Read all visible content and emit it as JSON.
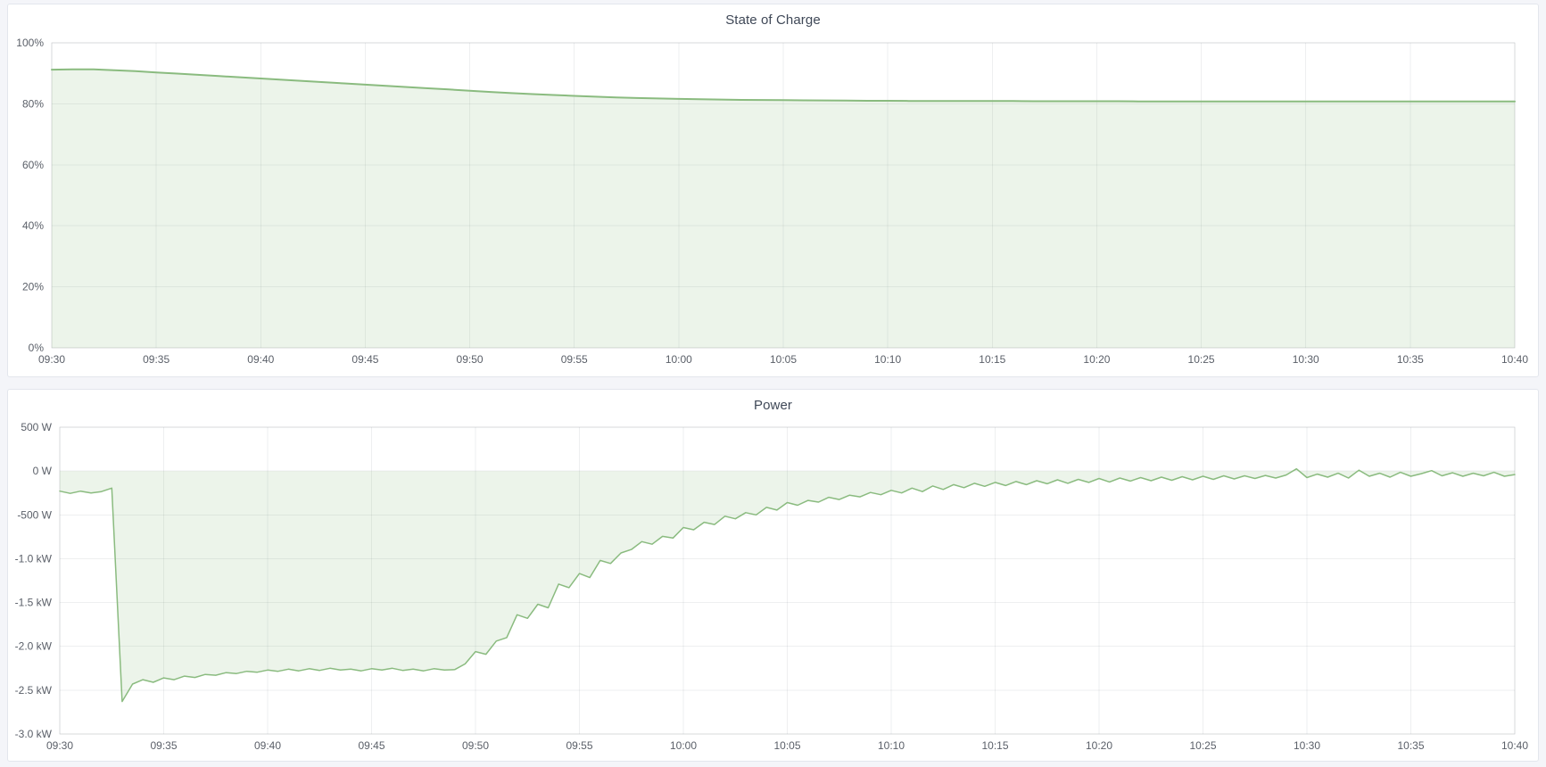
{
  "page": {
    "background": "#f4f5f9",
    "panel_background": "#ffffff"
  },
  "theme": {
    "line_green": "#8abb7f",
    "fill_green": "rgba(138,187,127,0.16)",
    "grid_color": "rgba(20,30,40,0.07)",
    "frame_color": "rgba(20,30,40,0.10)",
    "title_color": "#3f4857",
    "tick_color": "#5a5f68"
  },
  "panels": [
    {
      "title": "State of Charge"
    },
    {
      "title": "Power"
    }
  ],
  "chart_data": [
    {
      "type": "area",
      "title": "State of Charge",
      "xlabel": "",
      "ylabel": "",
      "legend": "none",
      "grid": true,
      "x_range_min": [
        0,
        70
      ],
      "x_ticks": {
        "minutes": [
          0,
          5,
          10,
          15,
          20,
          25,
          30,
          35,
          40,
          45,
          50,
          55,
          60,
          65,
          70
        ],
        "labels": [
          "09:30",
          "09:35",
          "09:40",
          "09:45",
          "09:50",
          "09:55",
          "10:00",
          "10:05",
          "10:10",
          "10:15",
          "10:20",
          "10:25",
          "10:30",
          "10:35",
          "10:40"
        ]
      },
      "y_range": [
        0,
        100
      ],
      "y_ticks": {
        "values": [
          100,
          80,
          60,
          40,
          20,
          0
        ],
        "labels": [
          "100%",
          "80%",
          "60%",
          "40%",
          "20%",
          "0%"
        ]
      },
      "series": [
        {
          "name": "State of Charge",
          "unit": "%",
          "color": "#8abb7f",
          "fill": "rgba(138,187,127,0.16)",
          "line_width": 2,
          "x_start_min": 0,
          "x_step_min": 1,
          "values": [
            91.2,
            91.3,
            91.3,
            91.0,
            90.7,
            90.3,
            89.9,
            89.5,
            89.1,
            88.7,
            88.3,
            87.9,
            87.5,
            87.1,
            86.7,
            86.3,
            85.9,
            85.5,
            85.1,
            84.7,
            84.3,
            83.9,
            83.5,
            83.2,
            82.9,
            82.6,
            82.35,
            82.1,
            81.9,
            81.75,
            81.6,
            81.5,
            81.4,
            81.3,
            81.25,
            81.2,
            81.15,
            81.1,
            81.05,
            81.0,
            81.0,
            80.95,
            80.95,
            80.9,
            80.9,
            80.9,
            80.9,
            80.85,
            80.85,
            80.85,
            80.85,
            80.85,
            80.8,
            80.8,
            80.8,
            80.8,
            80.8,
            80.8,
            80.8,
            80.8,
            80.8,
            80.8,
            80.8,
            80.75,
            80.75,
            80.75,
            80.75,
            80.75,
            80.75,
            80.75,
            80.75
          ]
        }
      ]
    },
    {
      "type": "area",
      "title": "Power",
      "xlabel": "",
      "ylabel": "",
      "legend": "none",
      "grid": true,
      "x_range_min": [
        0,
        70
      ],
      "x_ticks": {
        "minutes": [
          0,
          5,
          10,
          15,
          20,
          25,
          30,
          35,
          40,
          45,
          50,
          55,
          60,
          65,
          70
        ],
        "labels": [
          "09:30",
          "09:35",
          "09:40",
          "09:45",
          "09:50",
          "09:55",
          "10:00",
          "10:05",
          "10:10",
          "10:15",
          "10:20",
          "10:25",
          "10:30",
          "10:35",
          "10:40"
        ]
      },
      "y_range": [
        -3000,
        500
      ],
      "y_ticks": {
        "values": [
          500,
          0,
          -500,
          -1000,
          -1500,
          -2000,
          -2500,
          -3000
        ],
        "labels": [
          "500 W",
          "0 W",
          "-500 W",
          "-1.0 kW",
          "-1.5 kW",
          "-2.0 kW",
          "-2.5 kW",
          "-3.0 kW"
        ]
      },
      "series": [
        {
          "name": "Power",
          "unit": "W",
          "color": "#8abb7f",
          "fill": "rgba(138,187,127,0.16)",
          "line_width": 1.5,
          "x_start_min": 0,
          "x_step_min": 0.5,
          "values": [
            -230,
            -255,
            -230,
            -250,
            -235,
            -195,
            -2630,
            -2430,
            -2380,
            -2410,
            -2360,
            -2380,
            -2340,
            -2355,
            -2320,
            -2330,
            -2300,
            -2310,
            -2285,
            -2295,
            -2270,
            -2285,
            -2260,
            -2280,
            -2255,
            -2275,
            -2250,
            -2270,
            -2260,
            -2280,
            -2255,
            -2270,
            -2250,
            -2275,
            -2260,
            -2280,
            -2255,
            -2270,
            -2265,
            -2200,
            -2060,
            -2090,
            -1940,
            -1900,
            -1640,
            -1680,
            -1520,
            -1560,
            -1290,
            -1330,
            -1170,
            -1215,
            -1020,
            -1055,
            -935,
            -895,
            -805,
            -835,
            -745,
            -765,
            -645,
            -670,
            -585,
            -610,
            -515,
            -545,
            -475,
            -500,
            -415,
            -445,
            -360,
            -390,
            -335,
            -355,
            -300,
            -325,
            -275,
            -295,
            -245,
            -270,
            -220,
            -250,
            -195,
            -235,
            -170,
            -210,
            -155,
            -190,
            -140,
            -175,
            -130,
            -165,
            -120,
            -155,
            -110,
            -145,
            -100,
            -140,
            -95,
            -130,
            -85,
            -125,
            -80,
            -115,
            -75,
            -110,
            -70,
            -105,
            -65,
            -100,
            -60,
            -95,
            -55,
            -90,
            -55,
            -85,
            -50,
            -80,
            -45,
            25,
            -75,
            -35,
            -70,
            -25,
            -80,
            10,
            -60,
            -25,
            -70,
            -15,
            -60,
            -30,
            5,
            -55,
            -20,
            -60,
            -25,
            -55,
            -15,
            -60,
            -40
          ]
        }
      ]
    }
  ]
}
